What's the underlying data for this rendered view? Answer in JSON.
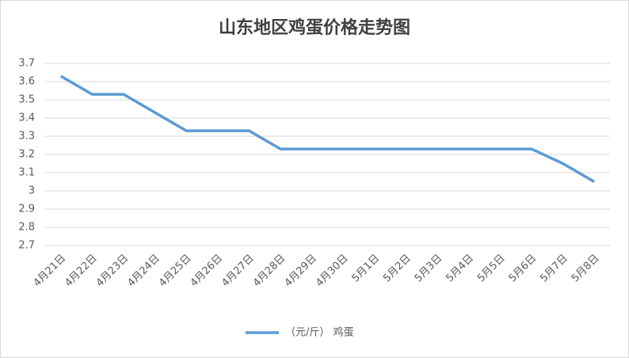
{
  "chart_data": {
    "type": "line",
    "title": "山东地区鸡蛋价格走势图",
    "categories": [
      "4月21日",
      "4月22日",
      "4月23日",
      "4月24日",
      "4月25日",
      "4月26日",
      "4月27日",
      "4月28日",
      "4月29日",
      "4月30日",
      "5月1日",
      "5月2日",
      "5月3日",
      "5月4日",
      "5月5日",
      "5月6日",
      "5月7日",
      "5月8日"
    ],
    "series": [
      {
        "name": "（元/斤） 鸡蛋",
        "color": "#5b9bd5",
        "values": [
          3.63,
          3.53,
          3.53,
          3.43,
          3.33,
          3.33,
          3.33,
          3.23,
          3.23,
          3.23,
          3.23,
          3.23,
          3.23,
          3.23,
          3.23,
          3.23,
          3.15,
          3.05
        ]
      }
    ],
    "ylim": [
      2.7,
      3.7
    ],
    "yticks": [
      2.7,
      2.8,
      2.9,
      3,
      3.1,
      3.2,
      3.3,
      3.4,
      3.5,
      3.6,
      3.7
    ],
    "grid": true,
    "legend": "bottom"
  }
}
